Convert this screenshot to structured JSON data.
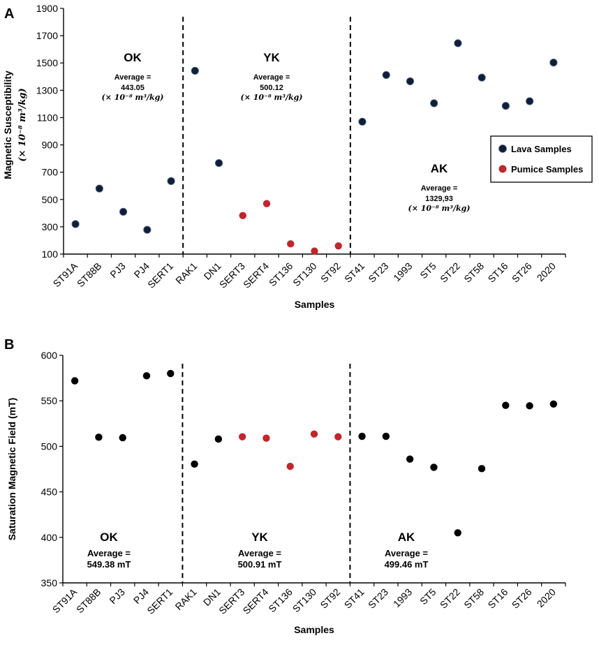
{
  "chart_data": [
    {
      "panel": "A",
      "type": "scatter",
      "xlabel": "Samples",
      "ylabel_line1": "Magnetic Susceptibility",
      "ylabel_line2": "(× 10⁻⁸ m³/kg)",
      "ylim": [
        100,
        1900
      ],
      "yticks": [
        100,
        300,
        500,
        700,
        900,
        1100,
        1300,
        1500,
        1700,
        1900
      ],
      "categories": [
        "ST91A",
        "ST88B",
        "PJ3",
        "PJ4",
        "SERT1",
        "RAK1",
        "DN1",
        "SERT3",
        "SERT4",
        "ST136",
        "ST130",
        "ST92",
        "ST41",
        "ST23",
        "1993",
        "ST5",
        "ST22",
        "ST58",
        "ST16",
        "ST26",
        "2020"
      ],
      "series": [
        {
          "name": "Lava Samples",
          "color": "#0f1f3a",
          "points": [
            {
              "x": "ST91A",
              "y": 320
            },
            {
              "x": "ST88B",
              "y": 580
            },
            {
              "x": "PJ3",
              "y": 410
            },
            {
              "x": "PJ4",
              "y": 278
            },
            {
              "x": "SERT1",
              "y": 635
            },
            {
              "x": "RAK1",
              "y": 1443
            },
            {
              "x": "DN1",
              "y": 767
            },
            {
              "x": "ST41",
              "y": 1070
            },
            {
              "x": "ST23",
              "y": 1412
            },
            {
              "x": "1993",
              "y": 1366
            },
            {
              "x": "ST5",
              "y": 1205
            },
            {
              "x": "ST22",
              "y": 1645
            },
            {
              "x": "ST58",
              "y": 1393
            },
            {
              "x": "ST16",
              "y": 1186
            },
            {
              "x": "ST26",
              "y": 1220
            },
            {
              "x": "2020",
              "y": 1503
            }
          ]
        },
        {
          "name": "Pumice Samples",
          "color": "#c0272d",
          "points": [
            {
              "x": "SERT3",
              "y": 382
            },
            {
              "x": "SERT4",
              "y": 470
            },
            {
              "x": "ST136",
              "y": 175
            },
            {
              "x": "ST130",
              "y": 122
            },
            {
              "x": "ST92",
              "y": 160
            }
          ]
        }
      ],
      "dividers_after": [
        "SERT1",
        "ST92"
      ],
      "groups": [
        {
          "name": "OK",
          "avg_label": "Average =",
          "avg_value": "443.05",
          "unit": "(× 10⁻⁸ m³/kg)"
        },
        {
          "name": "YK",
          "avg_label": "Average =",
          "avg_value": "500.12",
          "unit": "(× 10⁻⁸ m³/kg)"
        },
        {
          "name": "AK",
          "avg_label": "Average =",
          "avg_value": "1329,93",
          "unit": "(× 10⁻⁸ m³/kg)"
        }
      ],
      "legend": [
        "Lava Samples",
        "Pumice Samples"
      ]
    },
    {
      "panel": "B",
      "type": "scatter",
      "xlabel": "Samples",
      "ylabel": "Saturation Magnetic Field (mT)",
      "ylim": [
        350,
        600
      ],
      "yticks": [
        350,
        400,
        450,
        500,
        550,
        600
      ],
      "categories": [
        "ST91A",
        "ST88B",
        "PJ3",
        "PJ4",
        "SERT1",
        "RAK1",
        "DN1",
        "SERT3",
        "SERT4",
        "ST136",
        "ST130",
        "ST92",
        "ST41",
        "ST23",
        "1993",
        "ST5",
        "ST22",
        "ST58",
        "ST16",
        "ST26",
        "2020"
      ],
      "series": [
        {
          "name": "Lava Samples",
          "color": "#000000",
          "points": [
            {
              "x": "ST91A",
              "y": 572
            },
            {
              "x": "ST88B",
              "y": 510
            },
            {
              "x": "PJ3",
              "y": 509.5
            },
            {
              "x": "PJ4",
              "y": 577.5
            },
            {
              "x": "SERT1",
              "y": 580
            },
            {
              "x": "RAK1",
              "y": 480.5
            },
            {
              "x": "DN1",
              "y": 508
            },
            {
              "x": "ST41",
              "y": 511
            },
            {
              "x": "ST23",
              "y": 511
            },
            {
              "x": "1993",
              "y": 486
            },
            {
              "x": "ST5",
              "y": 477
            },
            {
              "x": "ST22",
              "y": 405
            },
            {
              "x": "ST58",
              "y": 475.5
            },
            {
              "x": "ST16",
              "y": 545
            },
            {
              "x": "ST26",
              "y": 544.5
            },
            {
              "x": "2020",
              "y": 546.5
            }
          ]
        },
        {
          "name": "Pumice Samples",
          "color": "#c0272d",
          "points": [
            {
              "x": "SERT3",
              "y": 510.5
            },
            {
              "x": "SERT4",
              "y": 509
            },
            {
              "x": "ST136",
              "y": 478
            },
            {
              "x": "ST130",
              "y": 513.5
            },
            {
              "x": "ST92",
              "y": 510.5
            }
          ]
        }
      ],
      "dividers_after": [
        "SERT1",
        "ST92"
      ],
      "groups": [
        {
          "name": "OK",
          "avg_label": "Average =",
          "avg_value": "549.38 mT"
        },
        {
          "name": "YK",
          "avg_label": "Average =",
          "avg_value": "500.91 mT"
        },
        {
          "name": "AK",
          "avg_label": "Average =",
          "avg_value": "499.46 mT"
        }
      ]
    }
  ]
}
